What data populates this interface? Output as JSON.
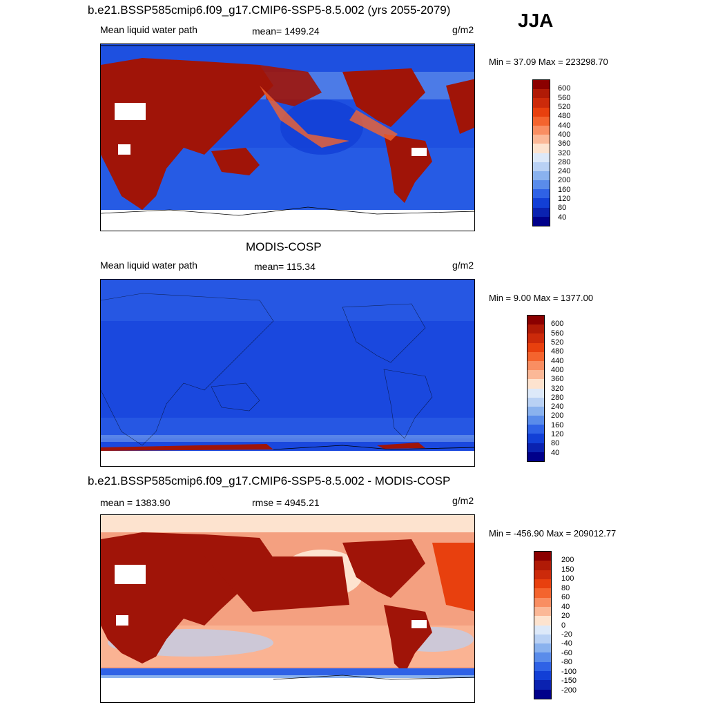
{
  "season": "JJA",
  "panels": [
    {
      "id": "model",
      "title": "b.e21.BSSP585cmip6.f09_g17.CMIP6-SSP5-8.5.002 (yrs 2055-2079)",
      "left_label": "Mean liquid water path",
      "center_label": "mean= 1499.24",
      "units": "g/m2",
      "minmax": "Min =  37.09 Max = 223298.70",
      "colorbar_labels": [
        "600",
        "560",
        "520",
        "480",
        "440",
        "400",
        "360",
        "320",
        "280",
        "240",
        "200",
        "160",
        "120",
        "80",
        "40"
      ]
    },
    {
      "id": "obs",
      "title": "MODIS-COSP",
      "left_label": "Mean liquid water path",
      "center_label": "mean= 115.34",
      "units": "g/m2",
      "minmax": "Min =   9.00 Max = 1377.00",
      "colorbar_labels": [
        "600",
        "560",
        "520",
        "480",
        "440",
        "400",
        "360",
        "320",
        "280",
        "240",
        "200",
        "160",
        "120",
        "80",
        "40"
      ]
    },
    {
      "id": "diff",
      "title": "b.e21.BSSP585cmip6.f09_g17.CMIP6-SSP5-8.5.002 - MODIS-COSP",
      "left_label": "mean = 1383.90",
      "center_label": "rmse = 4945.21",
      "units": "g/m2",
      "minmax": "Min = -456.90 Max = 209012.77",
      "colorbar_labels": [
        "200",
        "150",
        "100",
        "80",
        "60",
        "40",
        "20",
        "0",
        "-20",
        "-40",
        "-60",
        "-80",
        "-100",
        "-150",
        "-200"
      ]
    }
  ],
  "colors": {
    "colorbar": [
      "#8b0000",
      "#b01a06",
      "#cc2a0a",
      "#e8400e",
      "#f4642e",
      "#f98e62",
      "#fbb897",
      "#fde3cf",
      "#dde9f9",
      "#b9d1f4",
      "#8ab2ee",
      "#5a8cea",
      "#2f62e6",
      "#123fd6",
      "#0a22b0",
      "#00008a"
    ],
    "land_hot": "#a01408",
    "ocean_model": "#1e50e0",
    "ocean_obs": "#1a48de",
    "diff_warm": "#f4a080",
    "ice": "#ffffff"
  }
}
